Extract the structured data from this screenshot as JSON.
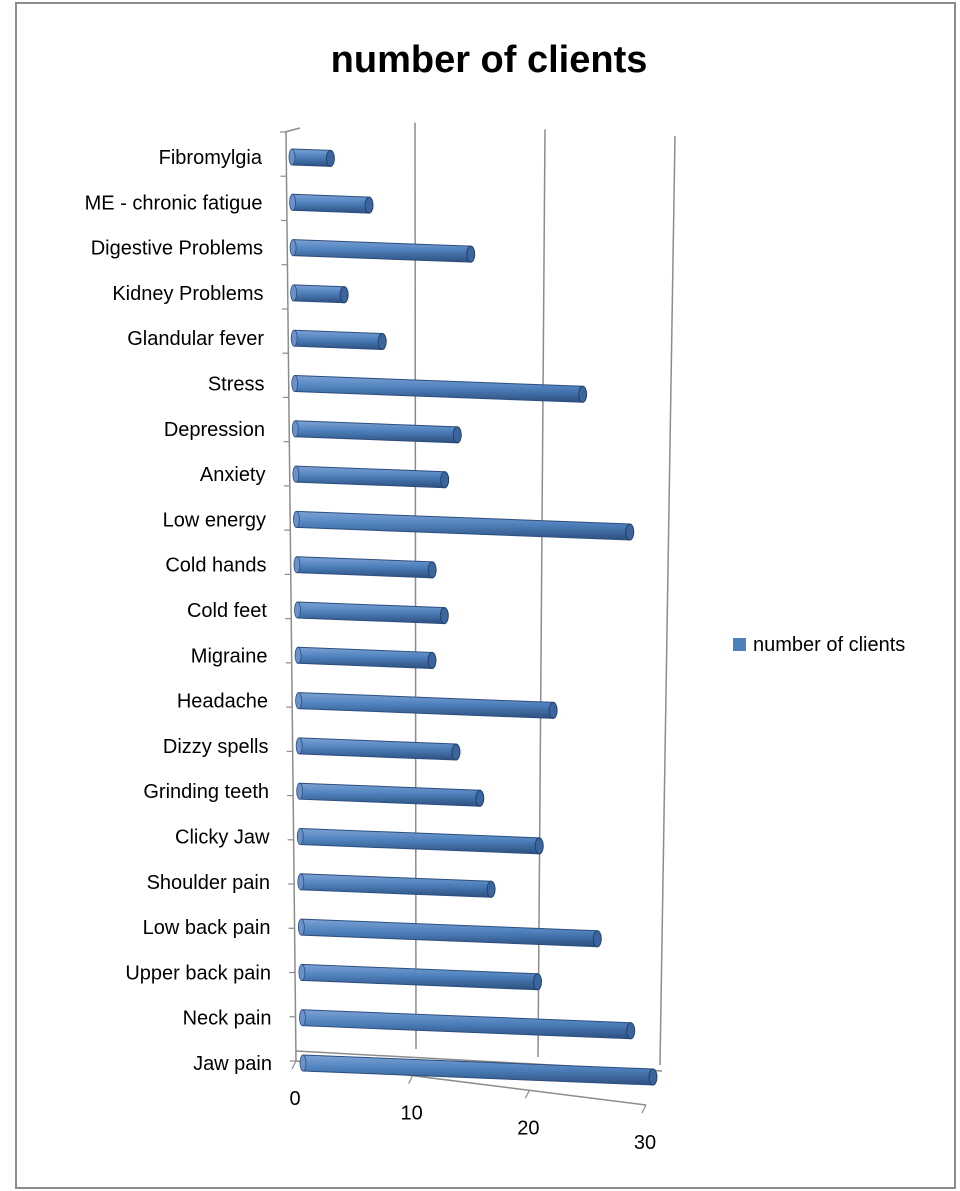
{
  "chart_data": {
    "type": "bar",
    "orientation": "horizontal",
    "title": "number of clients",
    "categories": [
      "Jaw pain",
      "Neck pain",
      "Upper back pain",
      "Low back pain",
      "Shoulder pain",
      "Clicky Jaw",
      "Grinding teeth",
      "Dizzy spells",
      "Headache",
      "Migraine",
      "Cold feet",
      "Cold hands",
      "Low energy",
      "Anxiety",
      "Depression",
      "Stress",
      "Glandular fever",
      "Kidney Problems",
      "Digestive Problems",
      "ME - chronic fatigue",
      "Fibromylgia"
    ],
    "series": [
      {
        "name": "number of clients",
        "color": "#4F81BD",
        "values": [
          30,
          28,
          20,
          25,
          16,
          20,
          15,
          13,
          21,
          11,
          12,
          11,
          27,
          12,
          13,
          23,
          7,
          4,
          14,
          6,
          3
        ]
      }
    ],
    "xlim": [
      0,
      30
    ],
    "ticks": [
      "0",
      "10",
      "20",
      "30"
    ],
    "grid": true,
    "legend": "right"
  }
}
